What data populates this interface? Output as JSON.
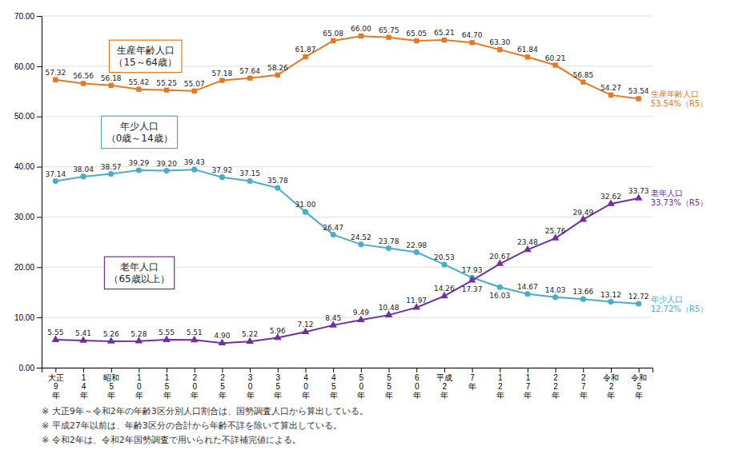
{
  "chart_data": {
    "type": "line",
    "categories": [
      "大正\n9\n年",
      "1\n4\n年",
      "昭和\n5\n年",
      "1\n0\n年",
      "1\n5\n年",
      "2\n0\n年",
      "2\n5\n年",
      "3\n0\n年",
      "3\n5\n年",
      "4\n0\n年",
      "4\n5\n年",
      "5\n0\n年",
      "5\n5\n年",
      "6\n0\n年",
      "平成\n2\n年",
      "7\n年",
      "1\n2\n年",
      "1\n7\n年",
      "2\n2\n年",
      "2\n7\n年",
      "令和\n2\n年",
      "令和\n5\n年"
    ],
    "series": [
      {
        "name": "生産年齢人口\n（15～64歳）",
        "color": "#E87722",
        "marker": "square",
        "values": [
          57.32,
          56.56,
          56.18,
          55.42,
          55.25,
          55.07,
          57.18,
          57.64,
          58.26,
          61.87,
          65.08,
          66.0,
          65.75,
          65.05,
          65.21,
          64.7,
          63.3,
          61.84,
          60.21,
          56.85,
          54.27,
          53.54
        ],
        "value_labels": [
          "57.32",
          "56.56",
          "56.18",
          "55.42",
          "55.25",
          "55.07",
          "57.18",
          "57.64",
          "58.26",
          "61.87",
          "65.08",
          "66.00",
          "65.75",
          "65.05",
          "65.21",
          "64.70",
          "63.30",
          "61.84",
          "60.21",
          "56.85",
          "54.27",
          "53.54"
        ]
      },
      {
        "name": "年少人口\n（0歳～14歳）",
        "color": "#4BACC6",
        "marker": "circle",
        "values": [
          37.14,
          38.04,
          38.57,
          39.29,
          39.2,
          39.43,
          37.92,
          37.15,
          35.78,
          31.0,
          26.47,
          24.52,
          23.78,
          22.98,
          20.53,
          17.93,
          16.03,
          14.67,
          14.03,
          13.66,
          13.12,
          12.72
        ],
        "value_labels": [
          "37.14",
          "38.04",
          "38.57",
          "39.29",
          "39.20",
          "39.43",
          "37.92",
          "37.15",
          "35.78",
          "31.00",
          "26.47",
          "24.52",
          "23.78",
          "22.98",
          "20.53",
          "17.93",
          "16.03",
          "14.67",
          "14.03",
          "13.66",
          "13.12",
          "12.72"
        ]
      },
      {
        "name": "老年人口\n（65歳以上）",
        "color": "#7030A0",
        "marker": "triangle",
        "values": [
          5.55,
          5.41,
          5.26,
          5.28,
          5.55,
          5.51,
          4.9,
          5.22,
          5.96,
          7.12,
          8.45,
          9.49,
          10.48,
          11.97,
          14.26,
          17.37,
          20.67,
          23.48,
          25.76,
          29.49,
          32.62,
          33.73
        ],
        "value_labels": [
          "5.55",
          "5.41",
          "5.26",
          "5.28",
          "5.55",
          "5.51",
          "4.90",
          "5.22",
          "5.96",
          "7.12",
          "8.45",
          "9.49",
          "10.48",
          "11.97",
          "14.26",
          "17.37",
          "20.67",
          "23.48",
          "25.76",
          "29.49",
          "32.62",
          "33.73"
        ]
      }
    ],
    "data_labels": true,
    "annotations": [
      "生産年齢人口\n53.54%（R5）",
      "年少人口\n12.72%（R5）",
      "老年人口\n33.73%（R5）"
    ],
    "footnotes": [
      "※ 大正9年～令和2年の年齢3区分別人口割合は、国勢調査人口から算出している。",
      "※ 平成27年以前は、年齢3区分の合計から年齢不詳を除いて算出している。",
      "※ 令和2年は、令和2年国勢調査で用いられた不詳補完値による。"
    ],
    "ylim": [
      0,
      70
    ],
    "yticks": [
      {
        "value": 0,
        "label": "0.00"
      },
      {
        "value": 10,
        "label": "10.00"
      },
      {
        "value": 20,
        "label": "20.00"
      },
      {
        "value": 30,
        "label": "30.00"
      },
      {
        "value": 40,
        "label": "40.00"
      },
      {
        "value": 50,
        "label": "50.00"
      },
      {
        "value": 60,
        "label": "60.00"
      },
      {
        "value": 70,
        "label": "70.00"
      }
    ],
    "grid": true
  }
}
